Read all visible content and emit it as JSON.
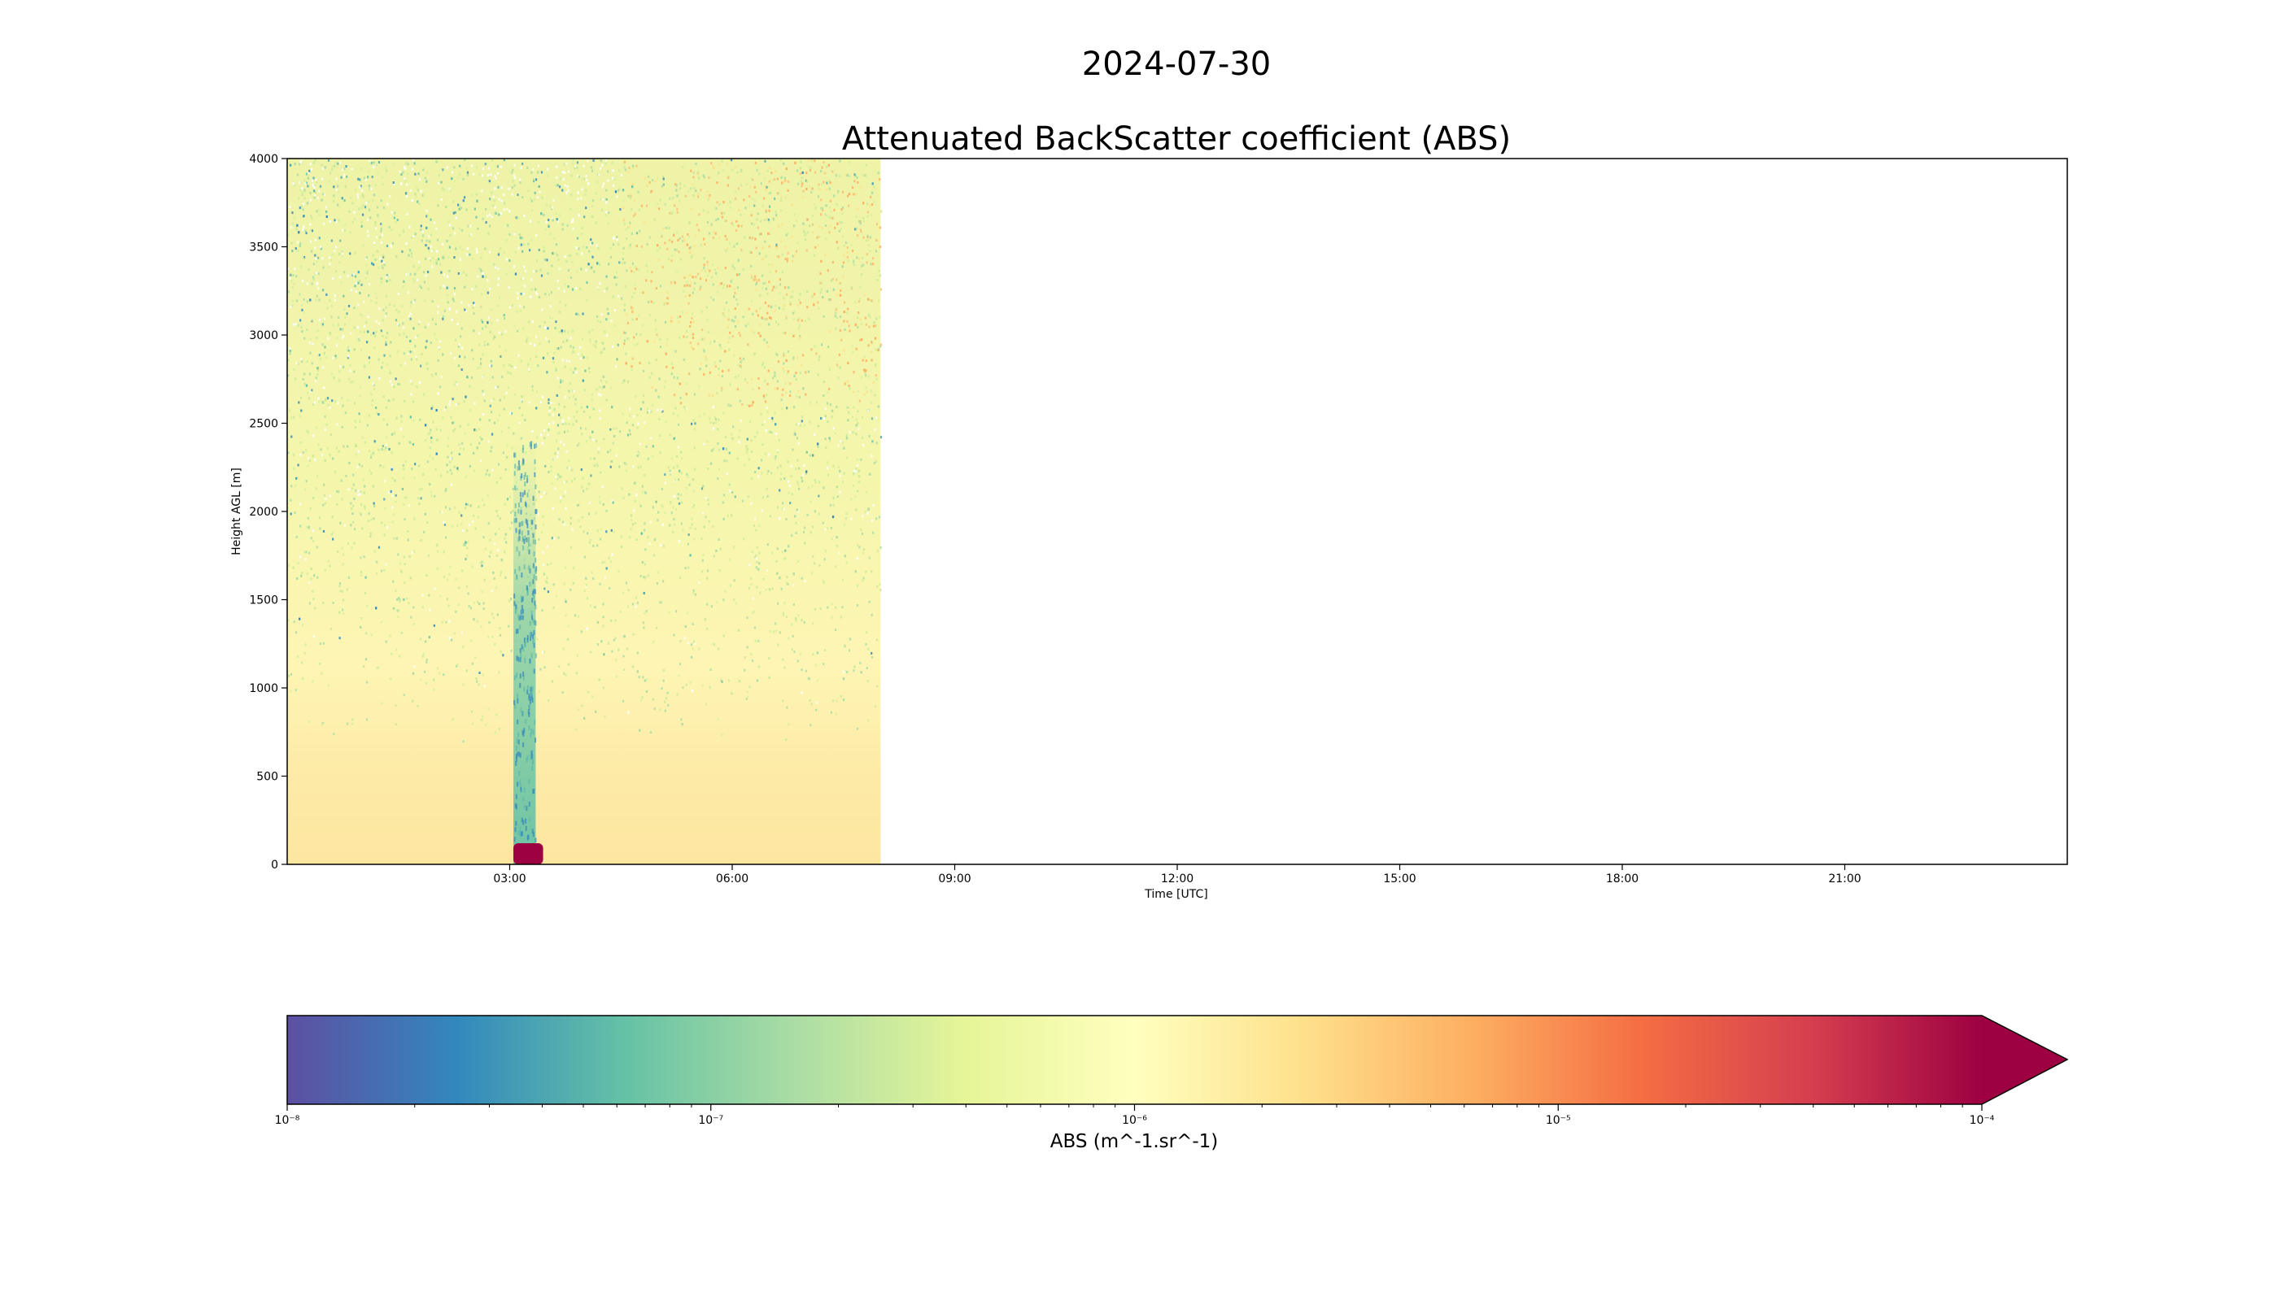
{
  "figure": {
    "suptitle": "2024-07-30"
  },
  "chart_data": {
    "type": "heatmap",
    "title": "Attenuated BackScatter coefficient (ABS)",
    "xlabel": "Time [UTC]",
    "ylabel": "Height AGL [m]",
    "x_range_hours": [
      0,
      24
    ],
    "y_range_m": [
      0,
      4000
    ],
    "data_extent_hours": [
      0,
      8
    ],
    "xticks": [
      "03:00",
      "06:00",
      "09:00",
      "12:00",
      "15:00",
      "18:00",
      "21:00"
    ],
    "xtick_hours": [
      3,
      6,
      9,
      12,
      15,
      18,
      21
    ],
    "yticks": [
      0,
      500,
      1000,
      1500,
      2000,
      2500,
      3000,
      3500,
      4000
    ],
    "colormap": "Spectral_r",
    "colorbar": {
      "label": "ABS (m^-1.sr^-1)",
      "scale": "log",
      "range": [
        1e-08,
        0.0001
      ],
      "extend": "max",
      "tick_values": [
        1e-08,
        1e-07,
        1e-06,
        1e-05,
        0.0001
      ],
      "ticks": [
        "10⁻⁸",
        "10⁻⁷",
        "10⁻⁶",
        "10⁻⁵",
        "10⁻⁴"
      ],
      "colors": [
        "#5e4fa2",
        "#3288bd",
        "#66c2a5",
        "#abdda4",
        "#e6f598",
        "#ffffbf",
        "#fee08b",
        "#fdae61",
        "#f46d43",
        "#d53e4f",
        "#9e0142"
      ]
    },
    "features": [
      {
        "name": "aerosol column",
        "time_hours": [
          3.05,
          3.35
        ],
        "height_m": [
          0,
          2400
        ]
      },
      {
        "name": "surface signal",
        "time_hours": [
          3.05,
          3.45
        ],
        "height_m": [
          0,
          120
        ]
      }
    ]
  }
}
